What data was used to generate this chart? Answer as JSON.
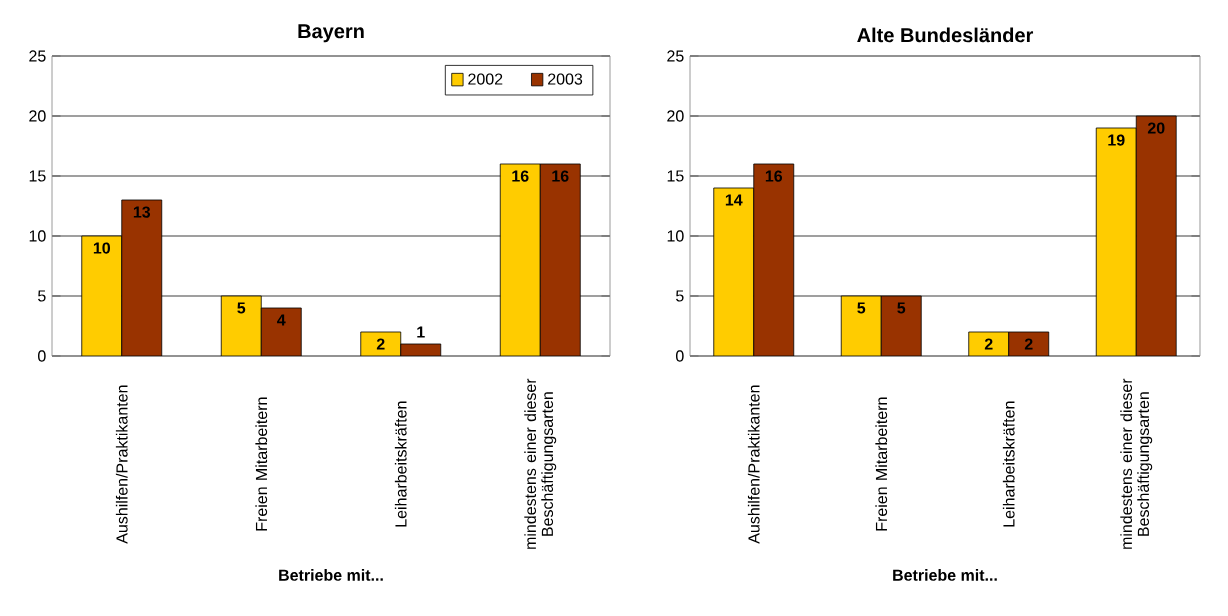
{
  "chart_data": [
    {
      "type": "bar",
      "title": "Bayern",
      "xlabel": "Betriebe mit...",
      "categories": [
        "Aushilfen/Praktikanten",
        "Freien Mitarbeitern",
        "Leiharbeitskräften",
        "mindestens einer dieser Beschäftigungsarten"
      ],
      "series": [
        {
          "name": "2002",
          "color": "#ffcc00",
          "values": [
            10,
            5,
            2,
            16
          ]
        },
        {
          "name": "2003",
          "color": "#993300",
          "values": [
            13,
            4,
            1,
            16
          ]
        }
      ],
      "ylim": [
        0,
        25
      ],
      "yticks": [
        0,
        5,
        10,
        15,
        20,
        25
      ],
      "grid": "y",
      "legend": "top right",
      "data_labels": true
    },
    {
      "type": "bar",
      "title": "Alte Bundesländer",
      "xlabel": "Betriebe mit...",
      "categories": [
        "Aushilfen/Praktikanten",
        "Freien Mitarbeitern",
        "Leiharbeitskräften",
        "mindestens einer dieser Beschäftigungsarten"
      ],
      "series": [
        {
          "color": "#ffcc00",
          "values": [
            14,
            5,
            2,
            19
          ]
        },
        {
          "color": "#993300",
          "values": [
            16,
            5,
            2,
            20
          ]
        }
      ],
      "ylim": [
        0,
        25
      ],
      "yticks": [
        0,
        5,
        10,
        15,
        20,
        25
      ],
      "grid": "y",
      "data_labels": true
    }
  ]
}
